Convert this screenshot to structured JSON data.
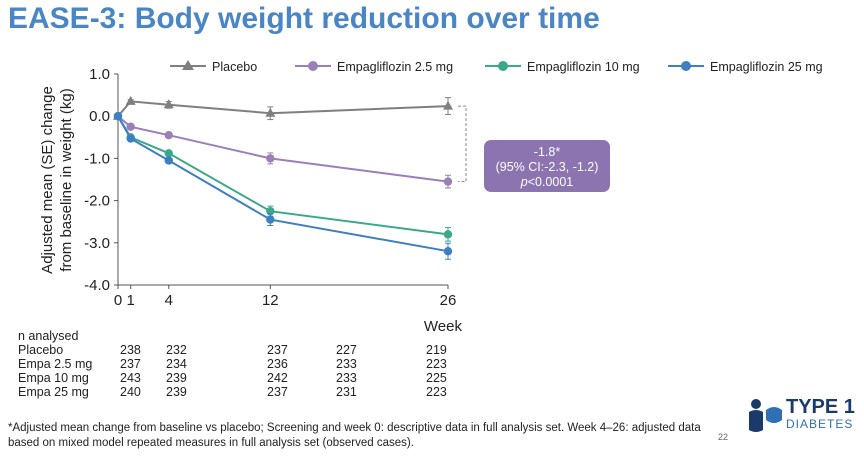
{
  "title": "EASE-3: Body weight reduction over time",
  "chart_data": {
    "type": "line",
    "ylabel": "Adjusted mean (SE) change from baseline in weight (kg)",
    "ylabel_line1": "Adjusted mean (SE) change",
    "ylabel_line2": "from baseline in weight (kg)",
    "xlabel": "Week",
    "ylim": [
      -4.0,
      1.0
    ],
    "yticks": [
      "1.0",
      "0.0",
      "-1.0",
      "-2.0",
      "-3.0",
      "-4.0"
    ],
    "ytick_values": [
      1.0,
      0.0,
      -1.0,
      -2.0,
      -3.0,
      -4.0
    ],
    "x": [
      0,
      1,
      4,
      12,
      26
    ],
    "xticks": [
      "0",
      "1",
      "4",
      "12",
      "26"
    ],
    "series": [
      {
        "name": "Placebo",
        "color": "#7f7f7f",
        "marker": "triangle",
        "x": [
          0,
          1,
          4,
          12,
          26
        ],
        "values": [
          0.0,
          0.35,
          0.27,
          0.07,
          0.24
        ],
        "se": [
          0,
          0.04,
          0.08,
          0.15,
          0.2
        ]
      },
      {
        "name": "Empagliflozin 2.5 mg",
        "color": "#9b80b8",
        "marker": "circle",
        "x": [
          0,
          1,
          4,
          12,
          26
        ],
        "values": [
          0.0,
          -0.25,
          -0.45,
          -1.0,
          -1.55
        ],
        "se": [
          0,
          0.04,
          0.05,
          0.13,
          0.15
        ]
      },
      {
        "name": "Empagliflozin 10 mg",
        "color": "#3aa98a",
        "marker": "circle",
        "x": [
          0,
          1,
          4,
          12,
          26
        ],
        "values": [
          0.0,
          -0.5,
          -0.88,
          -2.25,
          -2.8
        ],
        "se": [
          0,
          0.04,
          0.05,
          0.12,
          0.16
        ]
      },
      {
        "name": "Empagliflozin 25 mg",
        "color": "#3d7fc2",
        "marker": "circle",
        "x": [
          0,
          1,
          4,
          12,
          26
        ],
        "values": [
          0.0,
          -0.53,
          -1.05,
          -2.45,
          -3.2
        ],
        "se": [
          0,
          0.04,
          0.06,
          0.14,
          0.19
        ]
      }
    ],
    "annotation": {
      "line1": "-1.8*",
      "line2": "(95% CI:-2.3, -1.2)",
      "line3_italic": "p",
      "line3_rest": "<0.0001",
      "bg_color": "#8c74b0"
    }
  },
  "n_table": {
    "header": "n analysed",
    "rows": [
      {
        "label": "Placebo",
        "values": [
          "238",
          "232",
          "237",
          "227",
          "219"
        ]
      },
      {
        "label": "Empa 2.5 mg",
        "values": [
          "237",
          "234",
          "236",
          "233",
          "223"
        ]
      },
      {
        "label": "Empa 10 mg",
        "values": [
          "243",
          "239",
          "242",
          "233",
          "225"
        ]
      },
      {
        "label": "Empa 25 mg",
        "values": [
          "240",
          "239",
          "237",
          "231",
          "223"
        ]
      }
    ]
  },
  "footnote": "*Adjusted mean change from baseline vs placebo; Screening and week 0: descriptive data in full analysis set. Week 4–26: adjusted data based on mixed model repeated measures in full analysis set (observed cases).",
  "page_number": "22",
  "logo": {
    "line1": "TYPE 1",
    "line2": "DIABETES",
    "color": "#1a3a6c"
  }
}
